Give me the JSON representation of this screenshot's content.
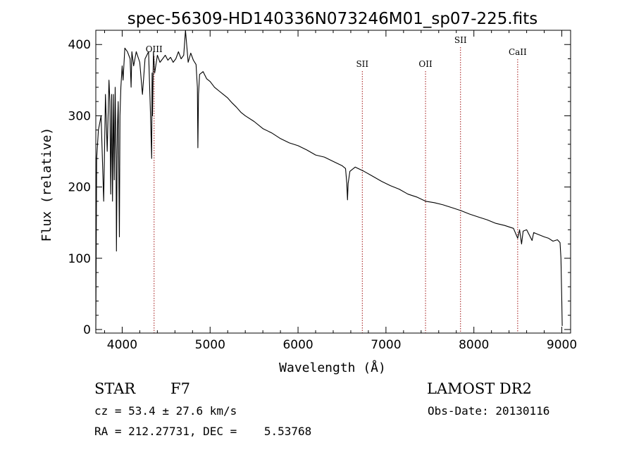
{
  "chart_data": {
    "type": "line",
    "title": "spec-56309-HD140336N073246M01_sp07-225.fits",
    "xlabel": "Wavelength (Å)",
    "ylabel": "Flux (relative)",
    "xlim": [
      3700,
      9100
    ],
    "ylim": [
      -5,
      420
    ],
    "xticks": [
      4000,
      5000,
      6000,
      7000,
      8000,
      9000
    ],
    "yticks": [
      0,
      100,
      200,
      300,
      400
    ],
    "spectrum": {
      "x": [
        3700,
        3710,
        3730,
        3760,
        3790,
        3810,
        3830,
        3850,
        3860,
        3870,
        3880,
        3890,
        3900,
        3910,
        3920,
        3930,
        3935,
        3945,
        3955,
        3968,
        3975,
        3985,
        4000,
        4010,
        4030,
        4060,
        4090,
        4101,
        4110,
        4130,
        4160,
        4200,
        4230,
        4260,
        4300,
        4320,
        4335,
        4340,
        4345,
        4355,
        4370,
        4400,
        4430,
        4460,
        4490,
        4520,
        4550,
        4580,
        4610,
        4640,
        4670,
        4700,
        4720,
        4750,
        4780,
        4810,
        4840,
        4855,
        4861,
        4868,
        4880,
        4920,
        4960,
        5000,
        5050,
        5100,
        5150,
        5200,
        5250,
        5300,
        5350,
        5400,
        5500,
        5600,
        5700,
        5800,
        5900,
        6000,
        6100,
        6200,
        6300,
        6400,
        6500,
        6540,
        6555,
        6563,
        6570,
        6590,
        6650,
        6750,
        6850,
        6950,
        7050,
        7150,
        7250,
        7350,
        7450,
        7550,
        7650,
        7750,
        7850,
        7950,
        8050,
        8150,
        8250,
        8350,
        8450,
        8498,
        8520,
        8542,
        8560,
        8600,
        8662,
        8680,
        8720,
        8800,
        8850,
        8900,
        8950,
        8980,
        8990,
        9000,
        9005
      ],
      "y": [
        0,
        240,
        280,
        300,
        180,
        330,
        250,
        350,
        320,
        190,
        330,
        180,
        330,
        210,
        340,
        240,
        110,
        280,
        320,
        130,
        300,
        340,
        370,
        350,
        395,
        390,
        380,
        340,
        390,
        370,
        390,
        375,
        330,
        380,
        390,
        310,
        240,
        360,
        300,
        390,
        360,
        385,
        375,
        380,
        385,
        378,
        382,
        375,
        380,
        390,
        380,
        385,
        420,
        375,
        388,
        378,
        372,
        340,
        255,
        330,
        358,
        362,
        352,
        348,
        340,
        335,
        330,
        325,
        318,
        312,
        305,
        300,
        292,
        282,
        276,
        268,
        262,
        258,
        252,
        245,
        242,
        236,
        230,
        226,
        205,
        182,
        205,
        222,
        228,
        222,
        215,
        208,
        202,
        197,
        190,
        186,
        180,
        178,
        175,
        171,
        167,
        162,
        158,
        154,
        149,
        146,
        142,
        128,
        140,
        120,
        138,
        140,
        125,
        136,
        134,
        130,
        128,
        124,
        126,
        122,
        100,
        40,
        5
      ]
    },
    "lines": [
      {
        "label": "OIII",
        "x": 4363
      },
      {
        "label": "SII",
        "x": 6731
      },
      {
        "label": "OII",
        "x": 7450
      },
      {
        "label": "SII",
        "x": 7848
      },
      {
        "label": "CaII",
        "x": 8498
      }
    ]
  },
  "info": {
    "class_label": "STAR",
    "subclass": "F7",
    "cz": "cz = 53.4 ± 27.6 km/s",
    "coords": "RA = 212.27731, DEC =    5.53768",
    "survey": "LAMOST DR2",
    "obs_date": "Obs-Date: 20130116"
  },
  "colors": {
    "axis": "#000000",
    "spectrum": "#000000",
    "line_marker": "#a01010"
  }
}
